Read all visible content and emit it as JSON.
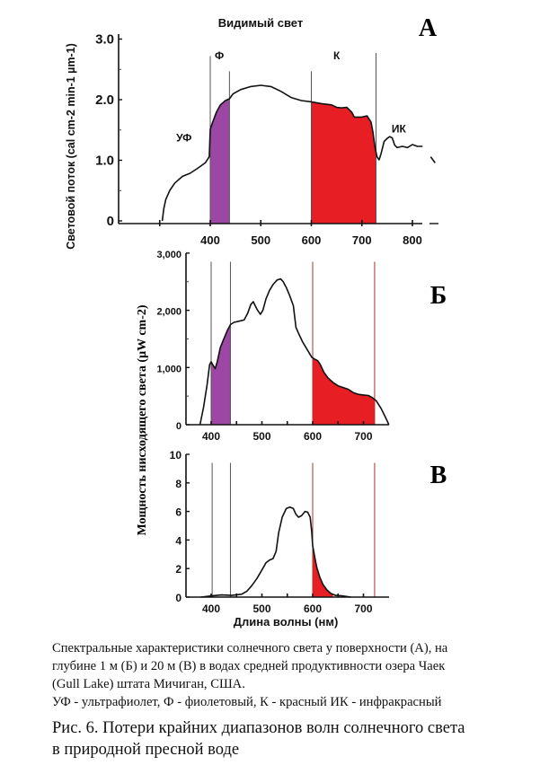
{
  "colors": {
    "violet": "#9B47A3",
    "red": "#E81E25",
    "line": "#111111",
    "divider": "#555555",
    "divider_red": "#B03030"
  },
  "chart_data": [
    {
      "id": "A",
      "type": "area",
      "panel_label": "А",
      "title": "Видимый свет",
      "ylabel": "Световой поток (cal cm-2 min-1 µm-1)",
      "xlabel": "",
      "xlim": [
        300,
        840
      ],
      "ylim": [
        0,
        3.0
      ],
      "yticks": [
        0,
        1.0,
        2.0,
        3.0
      ],
      "ytick_labels": [
        "0",
        "1.0",
        "2.0",
        "3.0"
      ],
      "xticks": [
        300,
        400,
        500,
        600,
        700,
        800
      ],
      "xtick_labels": [
        "",
        "400",
        "500",
        "600",
        "700",
        "800"
      ],
      "region_labels": [
        {
          "text": "УФ",
          "x": 348,
          "y": 1.3
        },
        {
          "text": "Ф",
          "x": 418,
          "y": 2.65
        },
        {
          "text": "К",
          "x": 650,
          "y": 2.65
        },
        {
          "text": "ИК",
          "x": 773,
          "y": 1.45
        }
      ],
      "dividers": [
        {
          "x": 400,
          "top": 2.7,
          "color": "dark"
        },
        {
          "x": 438,
          "top": 2.45,
          "color": "dark"
        },
        {
          "x": 600,
          "top": 2.45,
          "color": "dark"
        },
        {
          "x": 728,
          "top": 2.75,
          "color": "dark"
        }
      ],
      "bands": [
        {
          "name": "violet",
          "from": 400,
          "to": 438
        },
        {
          "name": "red",
          "from": 600,
          "to": 728
        }
      ],
      "series": [
        {
          "name": "surface",
          "x": [
            305,
            308,
            312,
            320,
            330,
            345,
            360,
            375,
            390,
            398,
            400,
            405,
            412,
            420,
            430,
            438,
            445,
            460,
            480,
            500,
            520,
            540,
            560,
            580,
            600,
            620,
            640,
            650,
            660,
            670,
            680,
            685,
            690,
            700,
            710,
            718,
            722,
            726,
            730,
            734,
            738,
            744,
            750,
            755,
            760,
            765,
            770,
            780,
            790,
            800,
            810,
            820
          ],
          "y": [
            0,
            0.2,
            0.35,
            0.5,
            0.62,
            0.73,
            0.78,
            0.86,
            0.95,
            1.05,
            1.5,
            1.62,
            1.78,
            1.9,
            1.97,
            2.0,
            2.08,
            2.15,
            2.2,
            2.22,
            2.2,
            2.12,
            2.02,
            1.97,
            1.95,
            1.92,
            1.9,
            1.86,
            1.85,
            1.86,
            1.78,
            1.7,
            1.7,
            1.7,
            1.72,
            1.62,
            1.45,
            1.2,
            1.05,
            1.0,
            1.1,
            1.3,
            1.35,
            1.38,
            1.36,
            1.24,
            1.2,
            1.22,
            1.2,
            1.25,
            1.22,
            1.22
          ]
        },
        {
          "name": "surface-tail",
          "x": [
            836,
            845
          ],
          "y": [
            1.05,
            0.95
          ]
        }
      ]
    },
    {
      "id": "B",
      "type": "area",
      "panel_label": "Б",
      "ylabel": "Мощность нисходящего света (µW cm-2)",
      "xlim": [
        350,
        750
      ],
      "ylim": [
        0,
        3000
      ],
      "yticks": [
        0,
        1000,
        2000,
        3000
      ],
      "ytick_labels": [
        "0",
        "1,000",
        "2,000",
        "3,000"
      ],
      "yminor": [
        500,
        1500,
        2500
      ],
      "xticks": [
        400,
        450,
        500,
        550,
        600,
        650,
        700
      ],
      "xtick_labels": [
        "400",
        "",
        "500",
        "",
        "600",
        "",
        "700"
      ],
      "dividers": [
        {
          "x": 400,
          "top": 2850,
          "color": "dark"
        },
        {
          "x": 438,
          "top": 2850,
          "color": "dark"
        },
        {
          "x": 600,
          "top": 2850,
          "color": "dark"
        },
        {
          "x": 722,
          "top": 2850,
          "color": "dark"
        }
      ],
      "bands": [
        {
          "name": "violet",
          "from": 400,
          "to": 438
        },
        {
          "name": "red",
          "from": 600,
          "to": 722
        }
      ],
      "series": [
        {
          "name": "depth-1m",
          "x": [
            378,
            385,
            392,
            397,
            400,
            403,
            408,
            412,
            418,
            425,
            432,
            438,
            445,
            455,
            465,
            472,
            478,
            483,
            490,
            497,
            502,
            508,
            515,
            522,
            530,
            537,
            542,
            548,
            555,
            562,
            567,
            572,
            580,
            590,
            598,
            603,
            610,
            615,
            622,
            630,
            640,
            650,
            660,
            670,
            680,
            690,
            700,
            710,
            718,
            725,
            735,
            745,
            750
          ],
          "y": [
            0,
            300,
            700,
            1050,
            1100,
            1050,
            980,
            1100,
            1350,
            1500,
            1650,
            1750,
            1790,
            1810,
            1830,
            1950,
            2100,
            2150,
            2020,
            1930,
            2000,
            2200,
            2350,
            2450,
            2530,
            2550,
            2500,
            2400,
            2250,
            2080,
            1700,
            1600,
            1450,
            1300,
            1180,
            1150,
            1120,
            1050,
            920,
            820,
            740,
            680,
            650,
            620,
            560,
            530,
            520,
            510,
            470,
            420,
            280,
            100,
            0
          ]
        }
      ]
    },
    {
      "id": "C",
      "type": "area",
      "panel_label": "В",
      "xlabel": "Длина волны (нм)",
      "xlim": [
        350,
        750
      ],
      "ylim": [
        0,
        10
      ],
      "yticks": [
        0,
        2,
        4,
        6,
        8,
        10
      ],
      "ytick_labels": [
        "0",
        "2",
        "4",
        "6",
        "8",
        "10"
      ],
      "xticks": [
        400,
        450,
        500,
        550,
        600,
        650,
        700
      ],
      "xtick_labels": [
        "400",
        "",
        "500",
        "",
        "600",
        "",
        "700"
      ],
      "dividers": [
        {
          "x": 402,
          "top": 9.4,
          "color": "dark"
        },
        {
          "x": 438,
          "top": 9.4,
          "color": "dark"
        },
        {
          "x": 600,
          "top": 9.4,
          "color": "dark"
        },
        {
          "x": 722,
          "top": 9.4,
          "color": "dark"
        }
      ],
      "bands": [
        {
          "name": "red",
          "from": 600,
          "to": 640
        }
      ],
      "series": [
        {
          "name": "depth-20m",
          "x": [
            380,
            400,
            420,
            440,
            460,
            470,
            480,
            490,
            500,
            508,
            515,
            522,
            528,
            533,
            540,
            548,
            555,
            562,
            567,
            572,
            578,
            585,
            590,
            595,
            598,
            600,
            604,
            608,
            614,
            620,
            628,
            636,
            645,
            655,
            665,
            675
          ],
          "y": [
            0,
            0.08,
            0.15,
            0.12,
            0.2,
            0.4,
            0.8,
            1.3,
            1.9,
            2.4,
            2.6,
            2.7,
            3.2,
            4.5,
            5.6,
            6.2,
            6.3,
            6.2,
            5.8,
            5.6,
            5.7,
            6.0,
            5.95,
            5.6,
            4.6,
            3.6,
            2.8,
            2.1,
            1.4,
            0.9,
            0.5,
            0.25,
            0.12,
            0.1,
            0.05,
            0
          ]
        }
      ]
    }
  ],
  "caption": {
    "lines": [
      "Спектральные характеристики солнечного света у поверхности (А), на",
      "глубине 1 м (Б) и 20 м (В) в водах средней продуктивности озера Чаек",
      "(Gull Lake) штата Мичиган, США.",
      "УФ - ультрафиолет, Ф - фиолетовый, К - красный ИК - инфракрасный"
    ]
  },
  "figure_title": {
    "lines": [
      "Рис. 6. Потери крайних диапазонов волн солнечного света",
      "в природной пресной воде"
    ]
  }
}
